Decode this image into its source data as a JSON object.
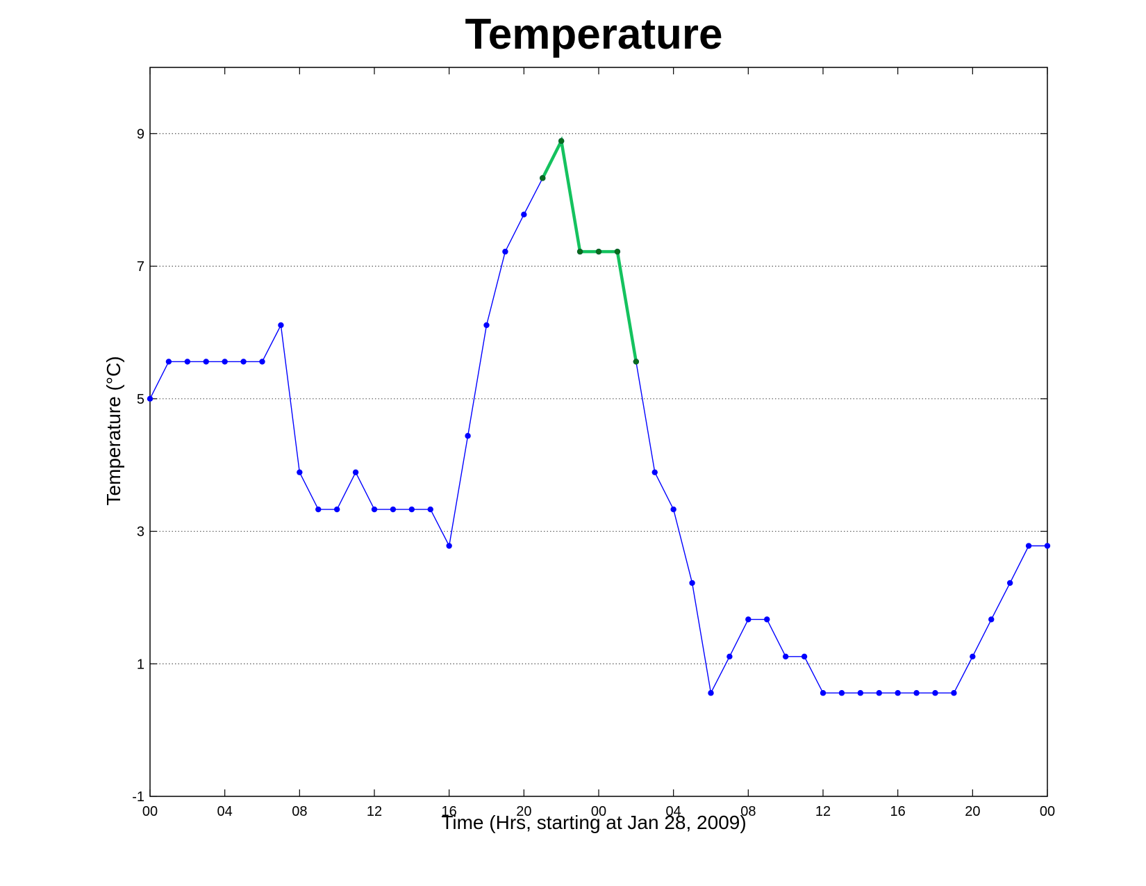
{
  "chart_data": {
    "type": "line",
    "title": "Temperature",
    "xlabel": "Time (Hrs, starting at Jan 28, 2009)",
    "ylabel": "Temperature (°C)",
    "x_range_hours": [
      0,
      48
    ],
    "ylim": [
      -1,
      10
    ],
    "x_ticks": [
      {
        "hour": 0,
        "label": "00"
      },
      {
        "hour": 4,
        "label": "04"
      },
      {
        "hour": 8,
        "label": "08"
      },
      {
        "hour": 12,
        "label": "12"
      },
      {
        "hour": 16,
        "label": "16"
      },
      {
        "hour": 20,
        "label": "20"
      },
      {
        "hour": 24,
        "label": "00"
      },
      {
        "hour": 28,
        "label": "04"
      },
      {
        "hour": 32,
        "label": "08"
      },
      {
        "hour": 36,
        "label": "12"
      },
      {
        "hour": 40,
        "label": "16"
      },
      {
        "hour": 44,
        "label": "20"
      },
      {
        "hour": 48,
        "label": "00"
      }
    ],
    "y_ticks": [
      -1,
      1,
      3,
      5,
      7,
      9
    ],
    "y_grid": [
      1,
      3,
      5,
      7,
      9
    ],
    "grid": "horizontal dotted",
    "series": [
      {
        "color": "#0000ff",
        "marker_color": "#0000ff",
        "x": [
          0,
          1,
          2,
          3,
          4,
          5,
          6,
          7,
          8,
          9,
          10,
          11,
          12,
          13,
          14,
          15,
          16,
          17,
          18,
          19,
          20,
          21,
          22,
          23,
          24,
          25,
          26,
          27,
          28,
          29,
          30,
          31,
          32,
          33,
          34,
          35,
          36,
          37,
          38,
          39,
          40,
          41,
          42,
          43,
          44,
          45,
          46,
          47,
          48
        ],
        "y": [
          5.0,
          5.56,
          5.56,
          5.56,
          5.56,
          5.56,
          5.56,
          6.11,
          3.89,
          3.33,
          3.33,
          3.89,
          3.33,
          3.33,
          3.33,
          3.33,
          2.78,
          4.44,
          6.11,
          7.22,
          7.78,
          8.33,
          8.89,
          7.22,
          7.22,
          7.22,
          5.56,
          3.89,
          3.33,
          2.22,
          0.56,
          1.11,
          1.67,
          1.67,
          1.11,
          1.11,
          0.56,
          0.56,
          0.56,
          0.56,
          0.56,
          0.56,
          0.56,
          0.56,
          1.11,
          1.67,
          2.22,
          2.78,
          2.78
        ]
      },
      {
        "color": "#14c25e",
        "marker_color": "#0a6b1e",
        "x": [
          21,
          22,
          23,
          24,
          25,
          26
        ],
        "y": [
          8.33,
          8.89,
          7.22,
          7.22,
          7.22,
          5.56
        ]
      }
    ]
  }
}
